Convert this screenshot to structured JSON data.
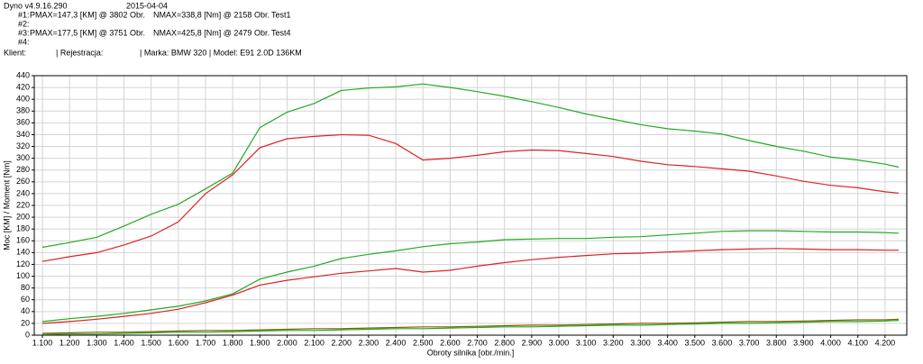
{
  "header": {
    "app": "Dyno v4.9.16.290",
    "date": "2015-04-04",
    "runs": [
      {
        "id": "#1:",
        "pmax": "PMAX=147,3 [KM] @ 3802 Obr.",
        "nmax": "NMAX=338,8 [Nm] @ 2158 Obr.",
        "test": "Test1"
      },
      {
        "id": "#2:"
      },
      {
        "id": "#3:",
        "pmax": "PMAX=177,5 [KM] @ 3751 Obr.",
        "nmax": "NMAX=425,8 [Nm] @ 2479 Obr.",
        "test": "Test4"
      },
      {
        "id": "#4:"
      }
    ],
    "client": "Klient:",
    "registration": "| Rejestracja:",
    "vehicle": "| Marka: BMW 320 | Model: E91 2.0D 136KM"
  },
  "chart_data": {
    "type": "line",
    "x_label": "Obroty silnika [obr./min.]",
    "y_label": "Moc [KM] / Moment [Nm]",
    "x": [
      1100,
      1200,
      1300,
      1400,
      1500,
      1600,
      1700,
      1800,
      1900,
      2000,
      2100,
      2200,
      2300,
      2400,
      2500,
      2600,
      2700,
      2800,
      2900,
      3000,
      3100,
      3200,
      3300,
      3400,
      3500,
      3600,
      3700,
      3800,
      3900,
      4000,
      4100,
      4200,
      4250
    ],
    "series": [
      {
        "color": "#22aa22",
        "values": [
          149,
          157,
          166,
          185,
          205,
          222,
          248,
          275,
          352,
          378,
          393,
          415,
          419,
          421,
          426,
          420,
          413,
          405,
          396,
          386,
          375,
          366,
          357,
          350,
          346,
          341,
          330,
          320,
          312,
          302,
          297,
          290,
          285
        ]
      },
      {
        "color": "#dd2222",
        "values": [
          125,
          133,
          140,
          153,
          168,
          192,
          240,
          272,
          318,
          333,
          337,
          340,
          339,
          325,
          297,
          300,
          305,
          311,
          314,
          313,
          308,
          303,
          295,
          289,
          286,
          282,
          278,
          270,
          261,
          254,
          250,
          243,
          241
        ]
      },
      {
        "color": "#22aa22",
        "values": [
          23,
          28,
          32,
          37,
          43,
          49,
          58,
          70,
          95,
          107,
          117,
          130,
          137,
          143,
          150,
          155,
          158,
          162,
          163,
          164,
          164,
          166,
          167,
          170,
          173,
          176,
          177,
          177,
          176,
          175,
          175,
          174,
          173
        ]
      },
      {
        "color": "#dd2222",
        "values": [
          20,
          23,
          27,
          32,
          37,
          44,
          55,
          68,
          85,
          93,
          99,
          105,
          109,
          113,
          107,
          110,
          117,
          123,
          128,
          132,
          135,
          138,
          139,
          141,
          143,
          145,
          146,
          147,
          146,
          145,
          145,
          144,
          144
        ]
      },
      {
        "color": "#8b5a00",
        "values": [
          3,
          4,
          5,
          5,
          6,
          7,
          8,
          8,
          9,
          10,
          11,
          11,
          12,
          13,
          14,
          14,
          15,
          16,
          17,
          17,
          18,
          19,
          20,
          20,
          21,
          22,
          23,
          23,
          24,
          25,
          26,
          26,
          27
        ]
      },
      {
        "color": "#22aa22",
        "values": [
          1,
          2,
          2,
          3,
          4,
          5,
          5,
          6,
          7,
          8,
          8,
          9,
          10,
          11,
          11,
          12,
          13,
          14,
          14,
          15,
          16,
          17,
          17,
          18,
          19,
          20,
          20,
          21,
          22,
          23,
          23,
          24,
          25
        ]
      }
    ],
    "xlim": [
      1070,
      4280
    ],
    "ylim": [
      0,
      440
    ],
    "xticks": [
      {
        "value": 1100,
        "label": "1.100"
      },
      {
        "value": 1200,
        "label": "1.200"
      },
      {
        "value": 1300,
        "label": "1.300"
      },
      {
        "value": 1400,
        "label": "1.400"
      },
      {
        "value": 1500,
        "label": "1.500"
      },
      {
        "value": 1600,
        "label": "1.600"
      },
      {
        "value": 1700,
        "label": "1.700"
      },
      {
        "value": 1800,
        "label": "1.800"
      },
      {
        "value": 1900,
        "label": "1.900"
      },
      {
        "value": 2000,
        "label": "2.000"
      },
      {
        "value": 2100,
        "label": "2.100"
      },
      {
        "value": 2200,
        "label": "2.200"
      },
      {
        "value": 2300,
        "label": "2.300"
      },
      {
        "value": 2400,
        "label": "2.400"
      },
      {
        "value": 2500,
        "label": "2.500"
      },
      {
        "value": 2600,
        "label": "2.600"
      },
      {
        "value": 2700,
        "label": "2.700"
      },
      {
        "value": 2800,
        "label": "2.800"
      },
      {
        "value": 2900,
        "label": "2.900"
      },
      {
        "value": 3000,
        "label": "3.000"
      },
      {
        "value": 3100,
        "label": "3.100"
      },
      {
        "value": 3200,
        "label": "3.200"
      },
      {
        "value": 3300,
        "label": "3.300"
      },
      {
        "value": 3400,
        "label": "3.400"
      },
      {
        "value": 3500,
        "label": "3.500"
      },
      {
        "value": 3600,
        "label": "3.600"
      },
      {
        "value": 3700,
        "label": "3.700"
      },
      {
        "value": 3800,
        "label": "3.800"
      },
      {
        "value": 3900,
        "label": "3.900"
      },
      {
        "value": 4000,
        "label": "4.000"
      },
      {
        "value": 4100,
        "label": "4.100"
      },
      {
        "value": 4200,
        "label": "4.200"
      }
    ],
    "yticks": [
      0,
      20,
      40,
      60,
      80,
      100,
      120,
      140,
      160,
      180,
      200,
      220,
      240,
      260,
      280,
      300,
      320,
      340,
      360,
      380,
      400,
      420,
      440
    ],
    "grid": true
  }
}
